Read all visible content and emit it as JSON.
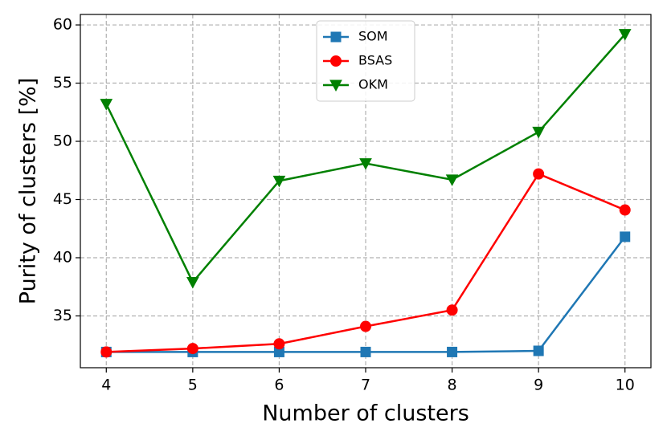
{
  "chart_data": {
    "type": "line",
    "x_label": "Number of clusters",
    "y_label": "Purity of clusters [%]",
    "x": [
      4,
      5,
      6,
      7,
      8,
      9,
      10
    ],
    "series": [
      {
        "name": "SOM",
        "color": "#1f77b4",
        "marker": "square",
        "values": [
          31.9,
          31.9,
          31.9,
          31.9,
          31.9,
          32.0,
          41.8
        ]
      },
      {
        "name": "BSAS",
        "color": "#ff0000",
        "marker": "circle",
        "values": [
          31.9,
          32.2,
          32.6,
          34.1,
          35.5,
          47.2,
          44.1
        ]
      },
      {
        "name": "OKM",
        "color": "#008000",
        "marker": "triangle-down",
        "values": [
          53.2,
          37.9,
          46.6,
          48.1,
          46.7,
          50.8,
          59.2
        ]
      }
    ],
    "xlim": [
      3.7,
      10.3
    ],
    "xticks": [
      4,
      5,
      6,
      7,
      8,
      9,
      10
    ],
    "ylim": [
      30.55,
      60.9
    ],
    "yticks": [
      35,
      40,
      45,
      50,
      55,
      60
    ],
    "grid": true,
    "legend": "upper center"
  }
}
